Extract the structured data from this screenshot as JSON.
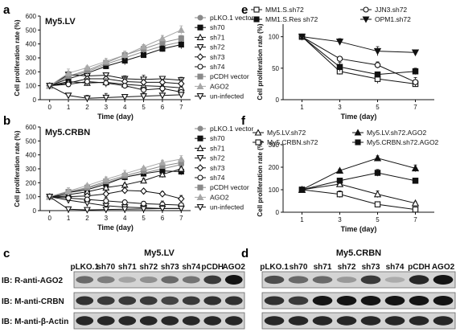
{
  "panel_letters": [
    "a",
    "b",
    "c",
    "d",
    "e",
    "f"
  ],
  "colors": {
    "grey": "#8a8a8a",
    "black": "#111111",
    "light_grey": "#a8a8a8",
    "dark_grey": "#6e6e6e"
  },
  "chart_data": [
    {
      "id": "a",
      "type": "line",
      "title": "My5.LV",
      "xlabel": "Time (day)",
      "ylabel": "Cell proliferation rate (%)",
      "x": [
        0,
        1,
        2,
        3,
        4,
        5,
        6,
        7
      ],
      "xlim": [
        -0.5,
        7.5
      ],
      "ylim": [
        0,
        600
      ],
      "yticks": [
        0,
        100,
        200,
        300,
        400,
        500,
        600
      ],
      "legend_position": "right",
      "series": [
        {
          "name": "pLKO.1 vector",
          "marker": "circle-filled",
          "color": "#8a8a8a",
          "values": [
            100,
            165,
            200,
            255,
            300,
            345,
            385,
            415
          ]
        },
        {
          "name": "sh70",
          "marker": "square-filled",
          "color": "#111111",
          "values": [
            100,
            150,
            190,
            240,
            280,
            320,
            365,
            395
          ]
        },
        {
          "name": "sh71",
          "marker": "triangle-open",
          "color": "#111111",
          "values": [
            100,
            130,
            120,
            125,
            110,
            100,
            95,
            85
          ]
        },
        {
          "name": "sh72",
          "marker": "triangle-down-open",
          "color": "#111111",
          "values": [
            100,
            180,
            170,
            175,
            150,
            145,
            150,
            140
          ]
        },
        {
          "name": "sh73",
          "marker": "diamond-open",
          "color": "#111111",
          "values": [
            100,
            120,
            150,
            150,
            130,
            125,
            125,
            115
          ]
        },
        {
          "name": "sh74",
          "marker": "circle-open",
          "color": "#111111",
          "values": [
            100,
            110,
            130,
            120,
            100,
            70,
            80,
            55
          ]
        },
        {
          "name": "pCDH vector",
          "marker": "square-filled",
          "color": "#8a8a8a",
          "values": [
            100,
            170,
            210,
            265,
            320,
            365,
            410,
            440
          ]
        },
        {
          "name": "AGO2",
          "marker": "triangle-filled",
          "color": "#a8a8a8",
          "values": [
            100,
            190,
            230,
            275,
            320,
            380,
            440,
            500
          ]
        },
        {
          "name": "un-infected",
          "marker": "triangle-down-open",
          "color": "#111111",
          "values": [
            100,
            30,
            10,
            15,
            20,
            25,
            30,
            35
          ]
        }
      ]
    },
    {
      "id": "b",
      "type": "line",
      "title": "My5.CRBN",
      "xlabel": "Time (day)",
      "ylabel": "Cell proliferation rate (%)",
      "x": [
        0,
        1,
        2,
        3,
        4,
        5,
        6,
        7
      ],
      "xlim": [
        -0.5,
        7.5
      ],
      "ylim": [
        0,
        600
      ],
      "yticks": [
        0,
        100,
        200,
        300,
        400,
        500,
        600
      ],
      "legend_position": "right",
      "series": [
        {
          "name": "pLKO.1 vector",
          "marker": "circle-filled",
          "color": "#8a8a8a",
          "values": [
            100,
            130,
            160,
            200,
            240,
            270,
            300,
            330
          ]
        },
        {
          "name": "sh70",
          "marker": "square-filled",
          "color": "#111111",
          "values": [
            100,
            130,
            150,
            190,
            240,
            265,
            285,
            280
          ]
        },
        {
          "name": "sh71",
          "marker": "triangle-open",
          "color": "#111111",
          "values": [
            100,
            115,
            135,
            165,
            185,
            215,
            260,
            300
          ]
        },
        {
          "name": "sh72",
          "marker": "triangle-down-open",
          "color": "#111111",
          "values": [
            100,
            75,
            55,
            35,
            25,
            20,
            15,
            15
          ]
        },
        {
          "name": "sh73",
          "marker": "diamond-open",
          "color": "#111111",
          "values": [
            100,
            100,
            105,
            120,
            145,
            140,
            120,
            85
          ]
        },
        {
          "name": "sh74",
          "marker": "circle-open",
          "color": "#111111",
          "values": [
            100,
            90,
            80,
            70,
            60,
            50,
            45,
            40
          ]
        },
        {
          "name": "pCDH vector",
          "marker": "square-filled",
          "color": "#8a8a8a",
          "values": [
            100,
            135,
            165,
            210,
            250,
            285,
            320,
            345
          ]
        },
        {
          "name": "AGO2",
          "marker": "triangle-filled",
          "color": "#a8a8a8",
          "values": [
            100,
            140,
            180,
            225,
            265,
            305,
            345,
            370
          ]
        },
        {
          "name": "un-infected",
          "marker": "triangle-down-open",
          "color": "#111111",
          "values": [
            100,
            10,
            5,
            8,
            10,
            12,
            15,
            15
          ]
        }
      ]
    },
    {
      "id": "e",
      "type": "line",
      "title": "",
      "xlabel": "Time (day)",
      "ylabel": "Cell proliferation rate (%)",
      "x": [
        1,
        3,
        5,
        7
      ],
      "xlim": [
        0,
        8
      ],
      "ylim": [
        0,
        120
      ],
      "yticks": [
        0,
        50,
        100
      ],
      "xticks": [
        1,
        3,
        5,
        7
      ],
      "legend_position": "top",
      "series": [
        {
          "name": "MM1.S.sh72",
          "marker": "square-open",
          "color": "#111111",
          "values": [
            100,
            45,
            33,
            25
          ]
        },
        {
          "name": "MM1.S.Res sh72",
          "marker": "square-filled",
          "color": "#111111",
          "values": [
            100,
            52,
            40,
            45
          ]
        },
        {
          "name": "JJN3.sh72",
          "marker": "circle-open",
          "color": "#111111",
          "values": [
            100,
            65,
            55,
            28
          ]
        },
        {
          "name": "OPM1.sh72",
          "marker": "triangle-down-filled",
          "color": "#111111",
          "values": [
            100,
            92,
            77,
            75
          ]
        }
      ]
    },
    {
      "id": "f",
      "type": "line",
      "title": "",
      "xlabel": "Time (day)",
      "ylabel": "Cell proliferation rate (%)",
      "x": [
        1,
        3,
        5,
        7
      ],
      "xlim": [
        0,
        8
      ],
      "ylim": [
        0,
        300
      ],
      "yticks": [
        0,
        100,
        200,
        300
      ],
      "xticks": [
        1,
        3,
        5,
        7
      ],
      "legend_position": "top",
      "series": [
        {
          "name": "My5.LV.sh72",
          "marker": "triangle-open",
          "color": "#111111",
          "values": [
            100,
            125,
            80,
            40
          ]
        },
        {
          "name": "My5.CRBN.sh72",
          "marker": "square-open",
          "color": "#111111",
          "values": [
            100,
            80,
            35,
            12
          ]
        },
        {
          "name": "My5.LV.sh72.AGO2",
          "marker": "triangle-filled",
          "color": "#111111",
          "values": [
            100,
            185,
            240,
            195
          ]
        },
        {
          "name": "My5.CRBN.sh72.AGO2",
          "marker": "square-filled",
          "color": "#111111",
          "values": [
            100,
            140,
            175,
            140
          ]
        }
      ]
    }
  ],
  "blots": {
    "c": {
      "title": "My5.LV",
      "lanes": [
        "pLKO.1",
        "sh70",
        "sh71",
        "sh72",
        "sh73",
        "sh74",
        "pCDH",
        "AGO2"
      ],
      "rows": [
        {
          "label": "IB: R-anti-AGO2",
          "intensity": [
            0.55,
            0.45,
            0.25,
            0.35,
            0.55,
            0.5,
            0.8,
            1.0
          ]
        },
        {
          "label": "IB: M-anti-CRBN",
          "intensity": [
            0.85,
            0.8,
            0.8,
            0.8,
            0.75,
            0.8,
            0.85,
            0.85
          ]
        },
        {
          "label": "IB: M-anti-β-Actin",
          "intensity": [
            0.9,
            0.9,
            0.9,
            0.9,
            0.9,
            0.9,
            0.9,
            0.9
          ]
        }
      ]
    },
    "d": {
      "title": "My5.CRBN",
      "lanes": [
        "pLKO.1",
        "sh70",
        "sh71",
        "sh72",
        "sh73",
        "sh74",
        "pCDH",
        "AGO2"
      ],
      "rows": [
        {
          "intensity": [
            0.7,
            0.55,
            0.55,
            0.3,
            0.8,
            0.2,
            0.9,
            1.0
          ]
        },
        {
          "intensity": [
            0.85,
            0.8,
            1.0,
            1.0,
            1.0,
            1.0,
            1.0,
            1.0
          ]
        },
        {
          "intensity": [
            0.9,
            0.9,
            0.9,
            0.9,
            0.9,
            0.9,
            0.9,
            0.9
          ]
        }
      ]
    }
  }
}
